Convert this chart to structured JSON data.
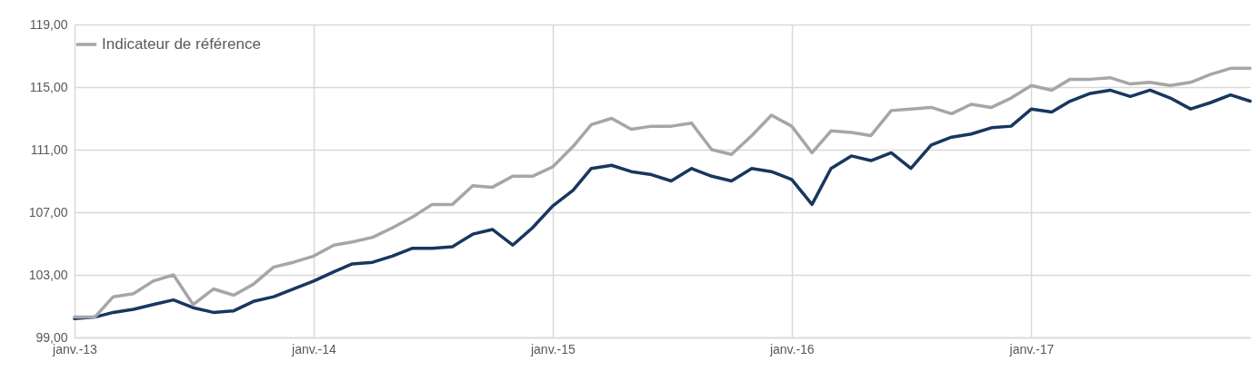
{
  "chart_data": {
    "type": "line",
    "x": [
      "2013-01-01",
      "2013-02-01",
      "2013-03-01",
      "2013-04-01",
      "2013-05-01",
      "2013-06-01",
      "2013-07-01",
      "2013-08-01",
      "2013-09-01",
      "2013-10-01",
      "2013-11-01",
      "2013-12-01",
      "2014-01-01",
      "2014-02-01",
      "2014-03-01",
      "2014-04-01",
      "2014-05-01",
      "2014-06-01",
      "2014-07-01",
      "2014-08-01",
      "2014-09-01",
      "2014-10-01",
      "2014-11-01",
      "2014-12-01",
      "2015-01-01",
      "2015-02-01",
      "2015-03-01",
      "2015-04-01",
      "2015-05-01",
      "2015-06-01",
      "2015-07-01",
      "2015-08-01",
      "2015-09-01",
      "2015-10-01",
      "2015-11-01",
      "2015-12-01",
      "2016-01-01",
      "2016-02-01",
      "2016-03-01",
      "2016-04-01",
      "2016-05-01",
      "2016-06-01",
      "2016-07-01",
      "2016-08-01",
      "2016-09-01",
      "2016-10-01",
      "2016-11-01",
      "2016-12-01",
      "2017-01-01",
      "2017-02-01",
      "2017-03-01",
      "2017-04-01",
      "2017-05-01",
      "2017-06-01",
      "2017-07-01",
      "2017-08-01",
      "2017-09-01",
      "2017-10-01",
      "2017-11-01",
      "2017-12-01"
    ],
    "series": [
      {
        "color": "#17375e",
        "values": [
          100.2,
          100.3,
          100.6,
          100.8,
          101.1,
          101.4,
          100.9,
          100.6,
          100.7,
          101.3,
          101.6,
          102.1,
          102.6,
          103.2,
          103.7,
          103.8,
          104.2,
          104.7,
          104.7,
          104.8,
          105.6,
          105.9,
          104.9,
          106.0,
          107.4,
          108.4,
          109.8,
          110.0,
          109.6,
          109.4,
          109.0,
          109.8,
          109.3,
          109.0,
          109.8,
          109.6,
          109.1,
          107.5,
          109.8,
          110.6,
          110.3,
          110.8,
          109.8,
          111.3,
          111.8,
          112.0,
          112.4,
          112.5,
          113.6,
          113.4,
          114.1,
          114.6,
          114.8,
          114.4,
          114.8,
          114.3,
          113.6,
          114.0,
          114.5,
          114.1
        ]
      },
      {
        "name": "Indicateur de référence",
        "color": "#a6a6a6",
        "values": [
          100.3,
          100.3,
          101.6,
          101.8,
          102.6,
          103.0,
          101.1,
          102.1,
          101.7,
          102.4,
          103.5,
          103.8,
          104.2,
          104.9,
          105.1,
          105.4,
          106.0,
          106.7,
          107.5,
          107.5,
          108.7,
          108.6,
          109.3,
          109.3,
          109.9,
          111.2,
          112.6,
          113.0,
          112.3,
          112.5,
          112.5,
          112.7,
          111.0,
          110.7,
          111.9,
          113.2,
          112.5,
          110.8,
          112.2,
          112.1,
          111.9,
          113.5,
          113.6,
          113.7,
          113.3,
          113.9,
          113.7,
          114.3,
          115.1,
          114.8,
          115.5,
          115.5,
          115.6,
          115.2,
          115.3,
          115.1,
          115.3,
          115.8,
          116.2,
          116.2
        ]
      }
    ],
    "xlim": [
      "2013-01-01",
      "2017-12-01"
    ],
    "xticks": [
      {
        "value": "2013-01-01",
        "label": "janv.-13"
      },
      {
        "value": "2014-01-01",
        "label": "janv.-14"
      },
      {
        "value": "2015-01-01",
        "label": "janv.-15"
      },
      {
        "value": "2016-01-01",
        "label": "janv.-16"
      },
      {
        "value": "2017-01-01",
        "label": "janv.-17"
      }
    ],
    "ylim": [
      99,
      119
    ],
    "yticks": [
      {
        "value": 99,
        "label": "99,00"
      },
      {
        "value": 103,
        "label": "103,00"
      },
      {
        "value": 107,
        "label": "107,00"
      },
      {
        "value": 111,
        "label": "111,00"
      },
      {
        "value": 115,
        "label": "115,00"
      },
      {
        "value": 119,
        "label": "119,00"
      }
    ],
    "grid": true,
    "legend": "top",
    "line_style": "solid"
  }
}
